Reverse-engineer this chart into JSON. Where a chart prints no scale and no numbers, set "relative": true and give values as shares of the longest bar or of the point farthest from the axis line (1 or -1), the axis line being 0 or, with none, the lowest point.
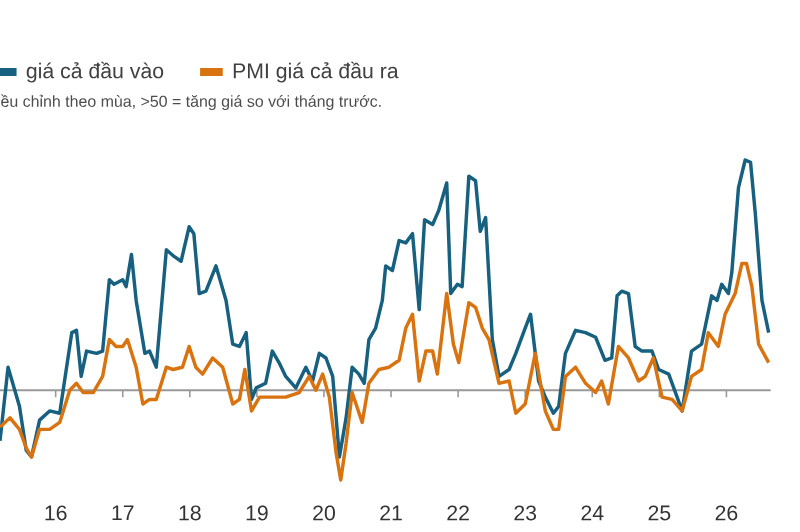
{
  "chart_data": {
    "type": "line",
    "subtitle": "ều chỉnh theo mùa, >50 = tăng giá so với tháng trước.",
    "relative": true,
    "legend": "top left",
    "xlim": [
      2015.17,
      2026.66
    ],
    "xticks": [
      {
        "value": 2016,
        "label": "16"
      },
      {
        "value": 2017,
        "label": "17"
      },
      {
        "value": 2018,
        "label": "18"
      },
      {
        "value": 2019,
        "label": "19"
      },
      {
        "value": 2020,
        "label": "20"
      },
      {
        "value": 2021,
        "label": "21"
      },
      {
        "value": 2022,
        "label": "22"
      },
      {
        "value": 2023,
        "label": "23"
      },
      {
        "value": 2024,
        "label": "24"
      },
      {
        "value": 2025,
        "label": "25"
      },
      {
        "value": 2026,
        "label": "26"
      }
    ],
    "series": [
      {
        "name": "giá cả đầu vào",
        "color": "#17607f",
        "x": [
          2015.17,
          2015.29,
          2015.46,
          2015.56,
          2015.64,
          2015.76,
          2015.91,
          2016.06,
          2016.24,
          2016.31,
          2016.38,
          2016.46,
          2016.61,
          2016.7,
          2016.8,
          2016.87,
          2017.0,
          2017.05,
          2017.13,
          2017.2,
          2017.33,
          2017.4,
          2017.5,
          2017.65,
          2017.77,
          2017.87,
          2017.99,
          2018.06,
          2018.14,
          2018.24,
          2018.39,
          2018.54,
          2018.64,
          2018.74,
          2018.84,
          2018.92,
          2018.99,
          2019.13,
          2019.23,
          2019.33,
          2019.43,
          2019.58,
          2019.73,
          2019.83,
          2019.93,
          2020.03,
          2020.13,
          2020.23,
          2020.33,
          2020.42,
          2020.52,
          2020.6,
          2020.67,
          2020.77,
          2020.87,
          2020.92,
          2021.02,
          2021.12,
          2021.22,
          2021.32,
          2021.42,
          2021.5,
          2021.62,
          2021.71,
          2021.83,
          2021.89,
          2021.99,
          2022.06,
          2022.16,
          2022.26,
          2022.33,
          2022.41,
          2022.51,
          2022.61,
          2022.76,
          2022.86,
          2023.0,
          2023.08,
          2023.2,
          2023.3,
          2023.42,
          2023.5,
          2023.6,
          2023.75,
          2023.9,
          2024.05,
          2024.19,
          2024.29,
          2024.37,
          2024.44,
          2024.54,
          2024.64,
          2024.74,
          2024.89,
          2024.99,
          2025.14,
          2025.34,
          2025.48,
          2025.63,
          2025.78,
          2025.86,
          2025.93,
          2026.03,
          2026.08,
          2026.18,
          2026.28,
          2026.36,
          2026.43,
          2026.53,
          2026.63
        ],
        "values": [
          -0.22,
          0.1,
          -0.07,
          -0.26,
          -0.29,
          -0.13,
          -0.09,
          -0.1,
          0.25,
          0.26,
          0.06,
          0.17,
          0.16,
          0.17,
          0.48,
          0.46,
          0.48,
          0.45,
          0.59,
          0.39,
          0.16,
          0.17,
          0.1,
          0.61,
          0.58,
          0.56,
          0.71,
          0.68,
          0.42,
          0.43,
          0.54,
          0.39,
          0.2,
          0.19,
          0.25,
          -0.04,
          0.01,
          0.03,
          0.17,
          0.12,
          0.06,
          0.01,
          0.1,
          0.04,
          0.16,
          0.14,
          0.06,
          -0.29,
          -0.12,
          0.1,
          0.07,
          0.03,
          0.22,
          0.27,
          0.39,
          0.54,
          0.52,
          0.65,
          0.64,
          0.68,
          0.35,
          0.74,
          0.72,
          0.78,
          0.9,
          0.42,
          0.46,
          0.45,
          0.93,
          0.91,
          0.69,
          0.75,
          0.22,
          0.06,
          0.09,
          0.16,
          0.27,
          0.33,
          0.04,
          -0.03,
          -0.1,
          -0.07,
          0.16,
          0.26,
          0.25,
          0.23,
          0.13,
          0.14,
          0.41,
          0.43,
          0.42,
          0.19,
          0.17,
          0.17,
          0.09,
          0.07,
          -0.09,
          0.17,
          0.2,
          0.41,
          0.39,
          0.46,
          0.42,
          0.51,
          0.88,
          1.0,
          0.99,
          0.77,
          0.39,
          0.25
        ]
      },
      {
        "name": "PMI giá cả đầu ra",
        "color": "#d9730f",
        "x": [
          2015.17,
          2015.32,
          2015.46,
          2015.56,
          2015.64,
          2015.76,
          2015.91,
          2016.06,
          2016.21,
          2016.31,
          2016.41,
          2016.56,
          2016.7,
          2016.8,
          2016.9,
          2017.0,
          2017.07,
          2017.2,
          2017.3,
          2017.4,
          2017.5,
          2017.65,
          2017.75,
          2017.89,
          2017.99,
          2018.09,
          2018.19,
          2018.34,
          2018.49,
          2018.64,
          2018.74,
          2018.82,
          2018.92,
          2019.04,
          2019.23,
          2019.43,
          2019.63,
          2019.78,
          2019.88,
          2019.98,
          2020.08,
          2020.18,
          2020.25,
          2020.33,
          2020.42,
          2020.57,
          2020.67,
          2020.82,
          2020.97,
          2021.12,
          2021.22,
          2021.32,
          2021.42,
          2021.52,
          2021.62,
          2021.69,
          2021.83,
          2021.93,
          2022.01,
          2022.16,
          2022.26,
          2022.36,
          2022.46,
          2022.61,
          2022.76,
          2022.86,
          2023.0,
          2023.15,
          2023.3,
          2023.42,
          2023.5,
          2023.6,
          2023.75,
          2023.9,
          2024.05,
          2024.14,
          2024.24,
          2024.39,
          2024.54,
          2024.69,
          2024.79,
          2024.91,
          2025.04,
          2025.19,
          2025.34,
          2025.48,
          2025.63,
          2025.73,
          2025.88,
          2025.98,
          2026.13,
          2026.23,
          2026.3,
          2026.38,
          2026.48,
          2026.63
        ],
        "values": [
          -0.16,
          -0.12,
          -0.17,
          -0.25,
          -0.29,
          -0.17,
          -0.17,
          -0.14,
          0,
          0.03,
          -0.01,
          -0.01,
          0.06,
          0.22,
          0.19,
          0.19,
          0.22,
          0.1,
          -0.06,
          -0.04,
          -0.04,
          0.1,
          0.09,
          0.1,
          0.19,
          0.1,
          0.07,
          0.14,
          0.1,
          -0.06,
          -0.04,
          0.09,
          -0.09,
          -0.03,
          -0.03,
          -0.03,
          -0.01,
          0.06,
          0,
          0.07,
          -0.03,
          -0.27,
          -0.39,
          -0.23,
          -0.01,
          -0.14,
          0.03,
          0.09,
          0.1,
          0.13,
          0.27,
          0.33,
          0.04,
          0.17,
          0.17,
          0.07,
          0.42,
          0.2,
          0.12,
          0.38,
          0.36,
          0.27,
          0.22,
          0.03,
          0.04,
          -0.1,
          -0.06,
          0.16,
          -0.09,
          -0.17,
          -0.17,
          0.06,
          0.1,
          0.03,
          -0.01,
          0.04,
          -0.06,
          0.19,
          0.14,
          0.04,
          0.06,
          0.14,
          -0.03,
          -0.04,
          -0.09,
          0.06,
          0.09,
          0.25,
          0.19,
          0.33,
          0.42,
          0.55,
          0.55,
          0.45,
          0.2,
          0.12
        ]
      }
    ]
  }
}
